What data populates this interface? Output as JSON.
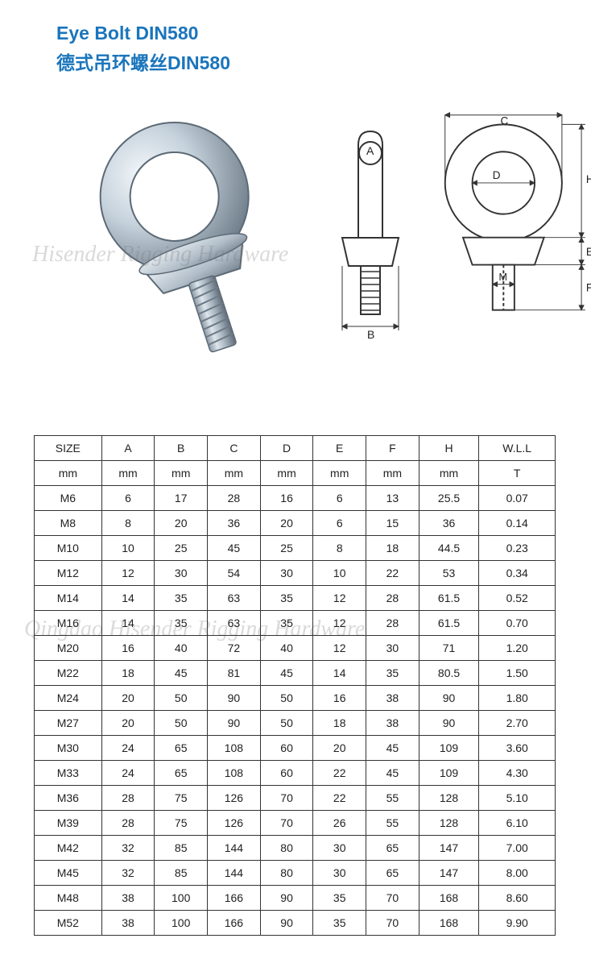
{
  "title": {
    "en": "Eye Bolt DIN580",
    "cn": "德式吊环螺丝DIN580"
  },
  "watermarks": {
    "wm1": "Hisender Rigging Hardware",
    "wm2": "Qingdao Hisender Rigging Hardware"
  },
  "diagram_labels": {
    "A": "A",
    "B": "B",
    "C": "C",
    "D": "D",
    "E": "E",
    "F": "F",
    "H": "H",
    "M": "M"
  },
  "table": {
    "headers": [
      "SIZE",
      "A",
      "B",
      "C",
      "D",
      "E",
      "F",
      "H",
      "W.L.L"
    ],
    "units": [
      "mm",
      "mm",
      "mm",
      "mm",
      "mm",
      "mm",
      "mm",
      "mm",
      "T"
    ],
    "rows": [
      [
        "M6",
        "6",
        "17",
        "28",
        "16",
        "6",
        "13",
        "25.5",
        "0.07"
      ],
      [
        "M8",
        "8",
        "20",
        "36",
        "20",
        "6",
        "15",
        "36",
        "0.14"
      ],
      [
        "M10",
        "10",
        "25",
        "45",
        "25",
        "8",
        "18",
        "44.5",
        "0.23"
      ],
      [
        "M12",
        "12",
        "30",
        "54",
        "30",
        "10",
        "22",
        "53",
        "0.34"
      ],
      [
        "M14",
        "14",
        "35",
        "63",
        "35",
        "12",
        "28",
        "61.5",
        "0.52"
      ],
      [
        "M16",
        "14",
        "35",
        "63",
        "35",
        "12",
        "28",
        "61.5",
        "0.70"
      ],
      [
        "M20",
        "16",
        "40",
        "72",
        "40",
        "12",
        "30",
        "71",
        "1.20"
      ],
      [
        "M22",
        "18",
        "45",
        "81",
        "45",
        "14",
        "35",
        "80.5",
        "1.50"
      ],
      [
        "M24",
        "20",
        "50",
        "90",
        "50",
        "16",
        "38",
        "90",
        "1.80"
      ],
      [
        "M27",
        "20",
        "50",
        "90",
        "50",
        "18",
        "38",
        "90",
        "2.70"
      ],
      [
        "M30",
        "24",
        "65",
        "108",
        "60",
        "20",
        "45",
        "109",
        "3.60"
      ],
      [
        "M33",
        "24",
        "65",
        "108",
        "60",
        "22",
        "45",
        "109",
        "4.30"
      ],
      [
        "M36",
        "28",
        "75",
        "126",
        "70",
        "22",
        "55",
        "128",
        "5.10"
      ],
      [
        "M39",
        "28",
        "75",
        "126",
        "70",
        "26",
        "55",
        "128",
        "6.10"
      ],
      [
        "M42",
        "32",
        "85",
        "144",
        "80",
        "30",
        "65",
        "147",
        "7.00"
      ],
      [
        "M45",
        "32",
        "85",
        "144",
        "80",
        "30",
        "65",
        "147",
        "8.00"
      ],
      [
        "M48",
        "38",
        "100",
        "166",
        "90",
        "35",
        "70",
        "168",
        "8.60"
      ],
      [
        "M52",
        "38",
        "100",
        "166",
        "90",
        "35",
        "70",
        "168",
        "9.90"
      ]
    ],
    "col_widths": [
      "66px",
      "66px",
      "66px",
      "66px",
      "66px",
      "66px",
      "66px",
      "66px",
      "66px"
    ],
    "border_color": "#333333",
    "font_size": 14
  },
  "colors": {
    "title": "#1a75bc",
    "text": "#222222",
    "background": "#ffffff",
    "metal_light": "#e8eef3",
    "metal_mid": "#b8c4cf",
    "metal_dark": "#7a8894",
    "line": "#333333"
  }
}
